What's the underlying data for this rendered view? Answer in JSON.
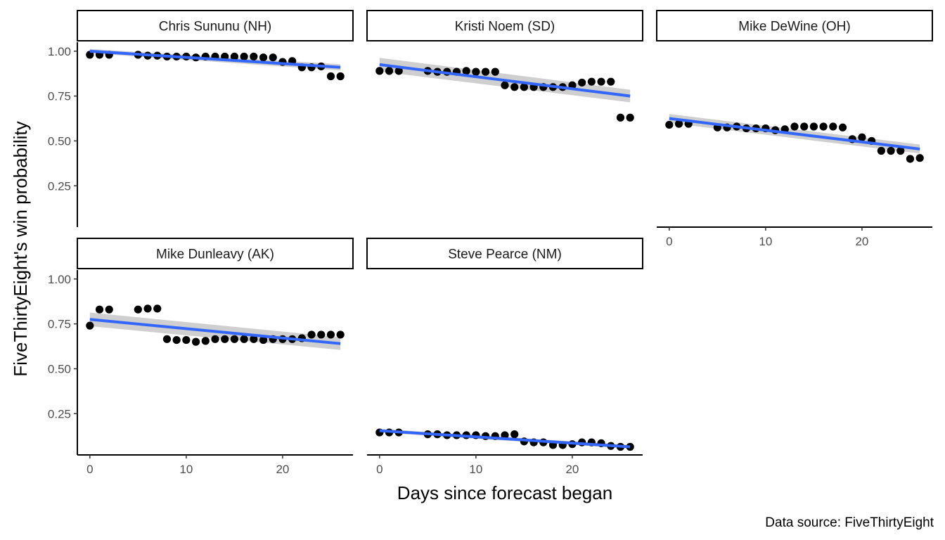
{
  "chart_data": {
    "type": "scatter",
    "xlabel": "Days since forecast began",
    "ylabel": "FiveThirtyEight's win probability",
    "caption": "Data source: FiveThirtyEight",
    "x_ticks": [
      0,
      10,
      20
    ],
    "y_ticks": [
      "0.25",
      "0.50",
      "0.75",
      "1.00"
    ],
    "xlim": [
      -1.3,
      27.3
    ],
    "ylim": [
      0.02,
      1.05
    ],
    "grid": false,
    "colors": {
      "points": "#000000",
      "fit_line": "#3366ff",
      "ci_band": "#bfbfbf"
    },
    "panels": [
      {
        "name": "Chris Sununu (NH)",
        "x": [
          0,
          1,
          2,
          5,
          6,
          7,
          8,
          9,
          10,
          11,
          12,
          13,
          14,
          15,
          16,
          17,
          18,
          19,
          20,
          21,
          22,
          23,
          24,
          25,
          26
        ],
        "y": [
          0.98,
          0.98,
          0.98,
          0.98,
          0.975,
          0.975,
          0.97,
          0.97,
          0.97,
          0.965,
          0.97,
          0.97,
          0.97,
          0.97,
          0.97,
          0.97,
          0.965,
          0.965,
          0.94,
          0.945,
          0.91,
          0.91,
          0.915,
          0.86,
          0.86
        ],
        "fit": {
          "y0": 1.0,
          "y1": 0.91,
          "se0": 0.012,
          "se1": 0.017
        }
      },
      {
        "name": "Kristi Noem (SD)",
        "x": [
          0,
          1,
          2,
          5,
          6,
          7,
          8,
          9,
          10,
          11,
          12,
          13,
          14,
          15,
          16,
          17,
          18,
          19,
          20,
          21,
          22,
          23,
          24,
          25,
          26
        ],
        "y": [
          0.89,
          0.89,
          0.89,
          0.89,
          0.885,
          0.885,
          0.885,
          0.89,
          0.885,
          0.885,
          0.885,
          0.81,
          0.8,
          0.8,
          0.8,
          0.8,
          0.8,
          0.8,
          0.81,
          0.825,
          0.83,
          0.83,
          0.83,
          0.63,
          0.63
        ],
        "fit": {
          "y0": 0.925,
          "y1": 0.75,
          "se0": 0.038,
          "se1": 0.035
        }
      },
      {
        "name": "Mike DeWine (OH)",
        "x": [
          0,
          1,
          2,
          5,
          6,
          7,
          8,
          9,
          10,
          11,
          12,
          13,
          14,
          15,
          16,
          17,
          18,
          19,
          20,
          21,
          22,
          23,
          24,
          25,
          26
        ],
        "y": [
          0.59,
          0.595,
          0.595,
          0.575,
          0.575,
          0.58,
          0.57,
          0.57,
          0.57,
          0.56,
          0.565,
          0.58,
          0.58,
          0.58,
          0.58,
          0.58,
          0.575,
          0.51,
          0.52,
          0.5,
          0.445,
          0.445,
          0.445,
          0.4,
          0.405
        ],
        "fit": {
          "y0": 0.625,
          "y1": 0.455,
          "se0": 0.025,
          "se1": 0.025
        }
      },
      {
        "name": "Mike Dunleavy (AK)",
        "x": [
          0,
          1,
          2,
          5,
          6,
          7,
          8,
          9,
          10,
          11,
          12,
          13,
          14,
          15,
          16,
          17,
          18,
          19,
          20,
          21,
          22,
          23,
          24,
          25,
          26
        ],
        "y": [
          0.74,
          0.83,
          0.83,
          0.83,
          0.835,
          0.835,
          0.665,
          0.66,
          0.66,
          0.65,
          0.655,
          0.665,
          0.665,
          0.665,
          0.665,
          0.665,
          0.66,
          0.665,
          0.665,
          0.665,
          0.67,
          0.69,
          0.69,
          0.69,
          0.69
        ],
        "fit": {
          "y0": 0.775,
          "y1": 0.64,
          "se0": 0.038,
          "se1": 0.035
        }
      },
      {
        "name": "Steve Pearce (NM)",
        "x": [
          0,
          1,
          2,
          5,
          6,
          7,
          8,
          9,
          10,
          11,
          12,
          13,
          14,
          15,
          16,
          17,
          18,
          19,
          20,
          21,
          22,
          23,
          24,
          25,
          26
        ],
        "y": [
          0.145,
          0.145,
          0.145,
          0.135,
          0.135,
          0.13,
          0.13,
          0.13,
          0.13,
          0.125,
          0.125,
          0.13,
          0.135,
          0.095,
          0.09,
          0.09,
          0.075,
          0.075,
          0.08,
          0.09,
          0.09,
          0.085,
          0.07,
          0.065,
          0.065
        ],
        "fit": {
          "y0": 0.155,
          "y1": 0.065,
          "se0": 0.01,
          "se1": 0.01
        }
      }
    ]
  }
}
